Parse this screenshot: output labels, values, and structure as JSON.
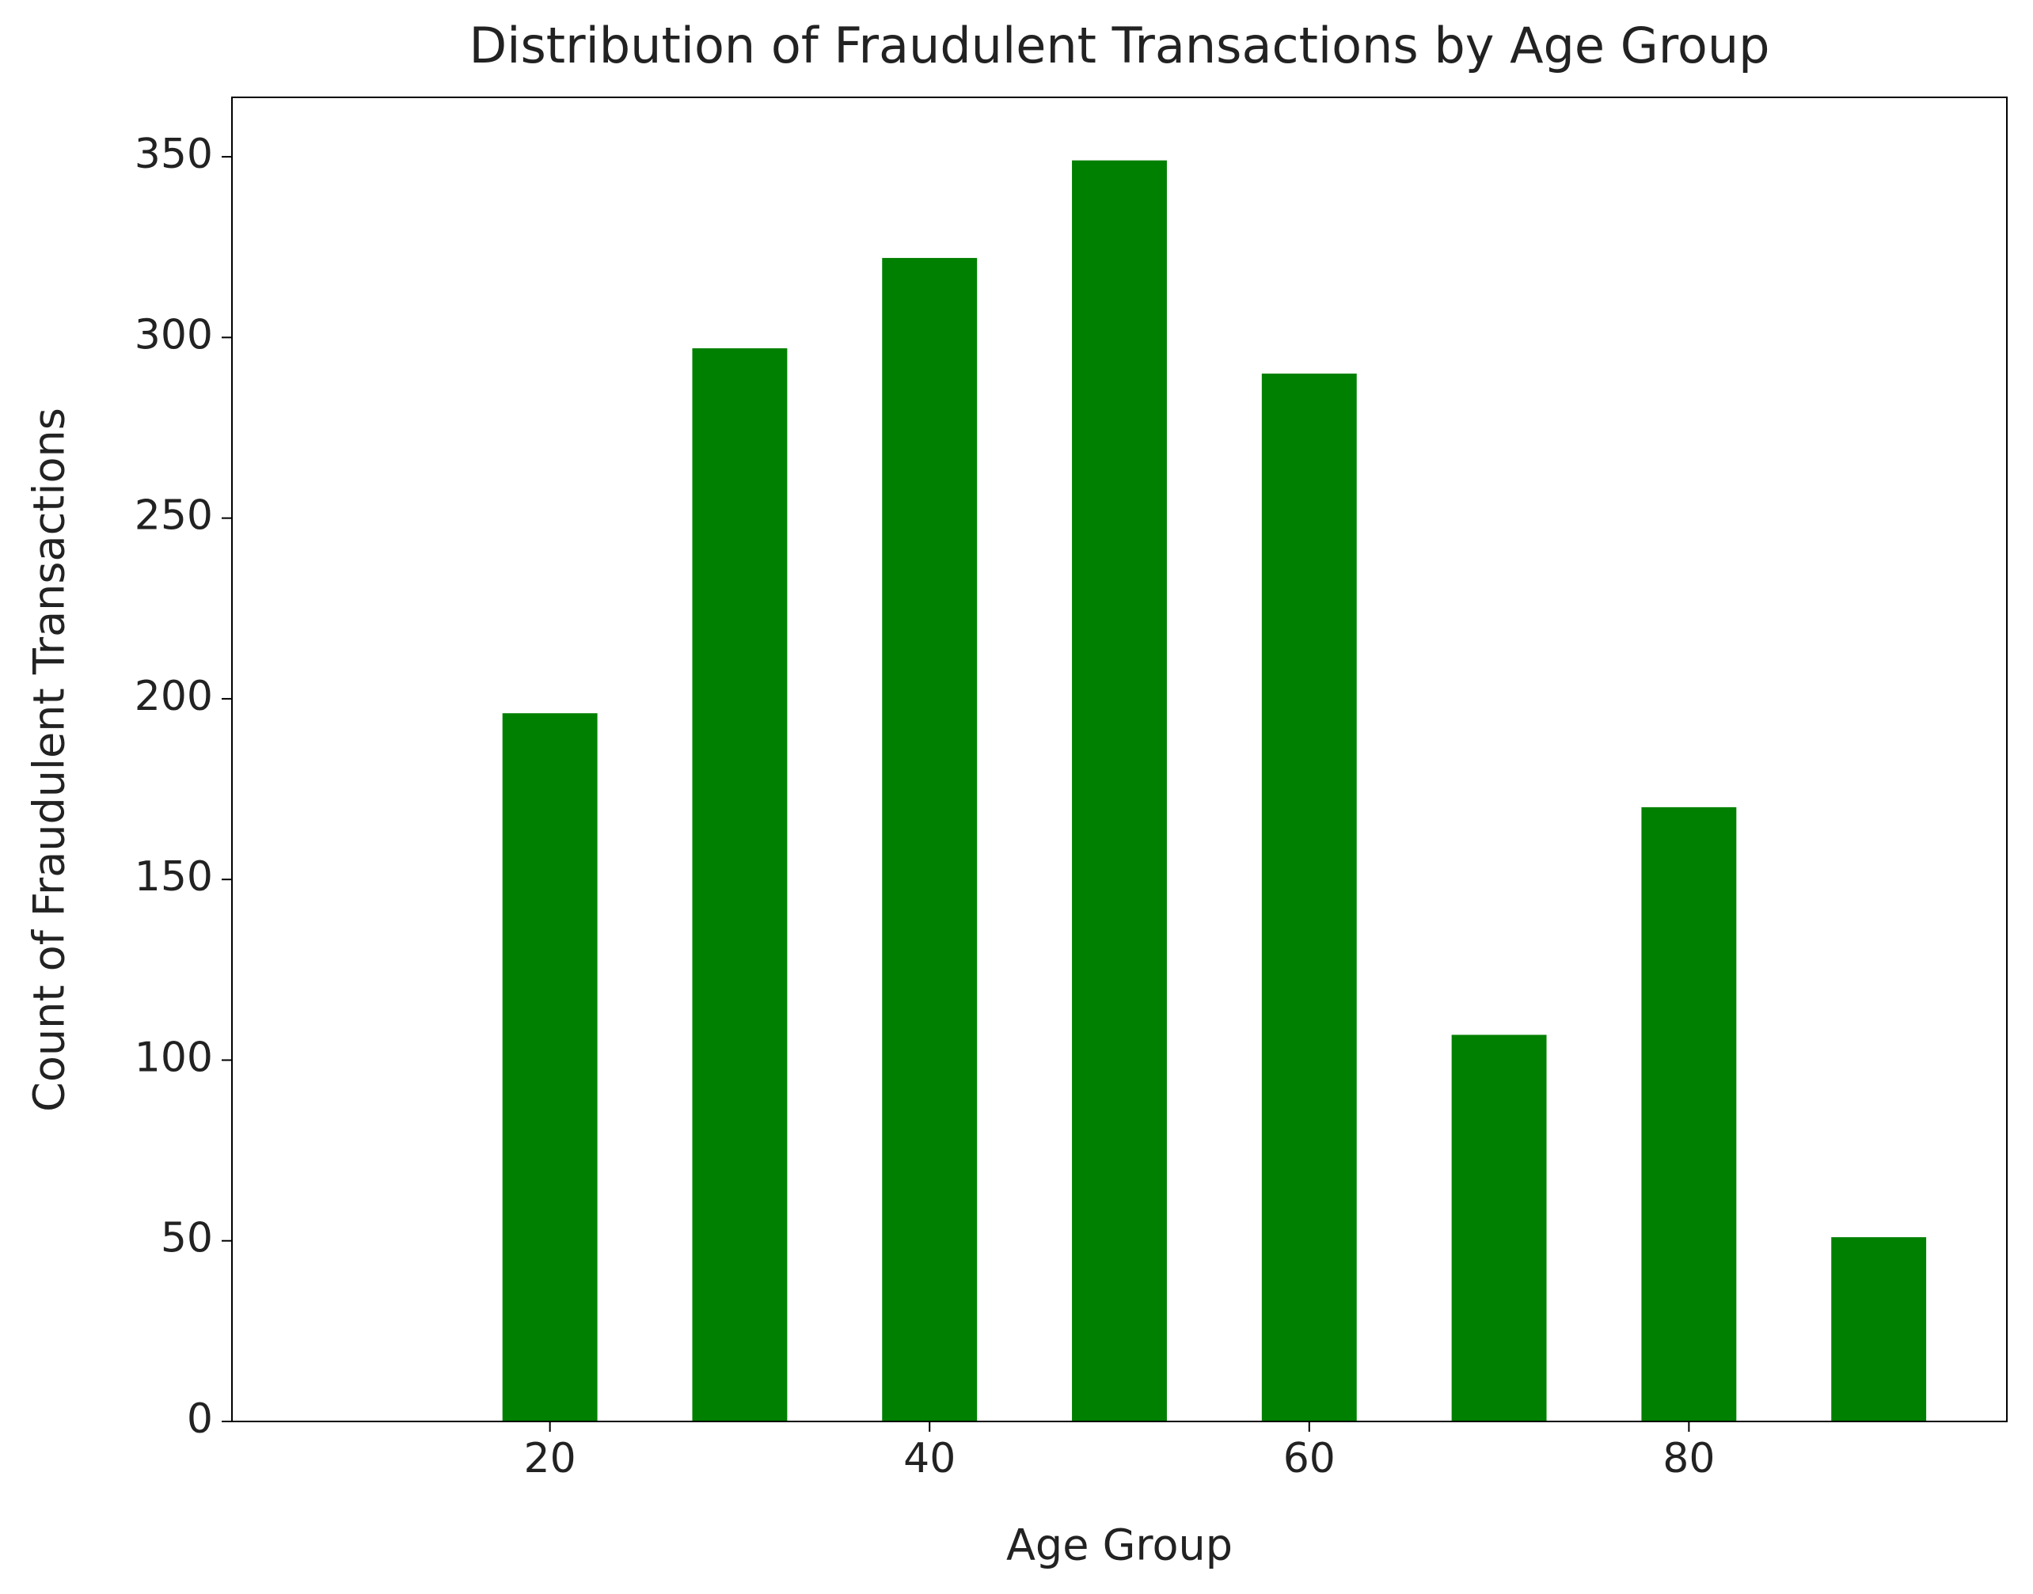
{
  "chart_data": {
    "type": "bar",
    "title": "Distribution of Fraudulent Transactions by Age Group",
    "x_label": "Age Group",
    "y_label": "Count of Fraudulent Transactions",
    "x": [
      20,
      30,
      40,
      50,
      60,
      70,
      80,
      90
    ],
    "values": [
      196,
      297,
      322,
      349,
      290,
      107,
      170,
      51
    ],
    "color": "#008000",
    "xlim": [
      3.25,
      96.75
    ],
    "xticks": [
      20,
      40,
      60,
      80
    ],
    "ylim": [
      0,
      366.45
    ],
    "yticks": [
      0,
      50,
      100,
      150,
      200,
      250,
      300,
      350
    ],
    "grid": false
  }
}
